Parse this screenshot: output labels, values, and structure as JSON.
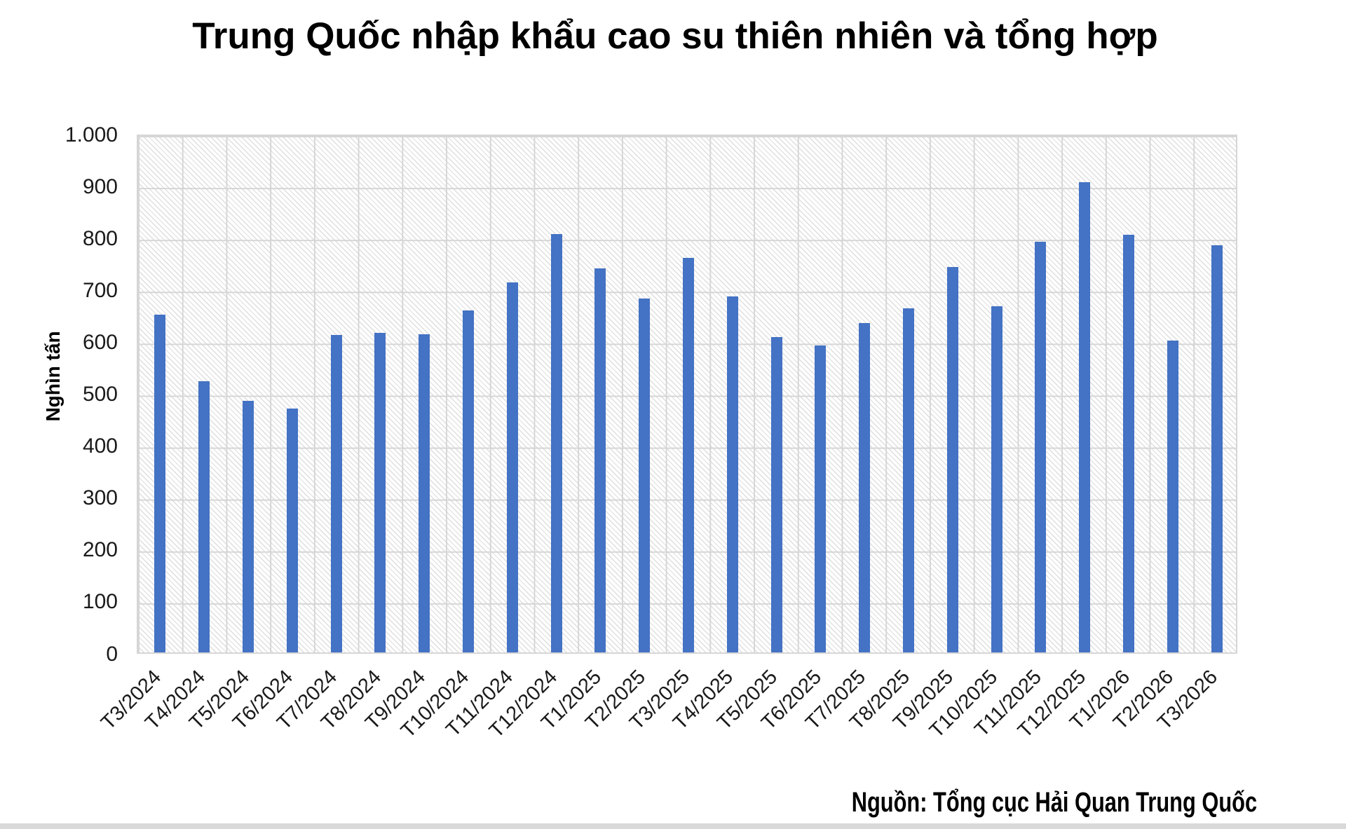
{
  "chart_data": {
    "type": "bar",
    "title": "Trung Quốc nhập khẩu cao su thiên nhiên và tổng hợp",
    "ylabel": "Nghìn tấn",
    "xlabel": "",
    "ylim": [
      0,
      1000
    ],
    "grid": true,
    "bar_color": "#4472c4",
    "y_ticks_top_to_bottom": [
      "1.000",
      "900",
      "800",
      "700",
      "600",
      "500",
      "400",
      "300",
      "200",
      "100",
      "0"
    ],
    "categories": [
      "T3/2024",
      "T4/2024",
      "T5/2024",
      "T6/2024",
      "T7/2024",
      "T8/2024",
      "T9/2024",
      "T10/2024",
      "T11/2024",
      "T12/2024",
      "T1/2025",
      "T2/2025",
      "T3/2025",
      "T4/2025",
      "T5/2025",
      "T6/2025",
      "T7/2025",
      "T8/2025",
      "T9/2025",
      "T10/2025",
      "T11/2025",
      "T12/2025",
      "T1/2026",
      "T2/2026",
      "T3/2026"
    ],
    "values": [
      650,
      523,
      485,
      470,
      612,
      616,
      613,
      658,
      712,
      806,
      740,
      681,
      760,
      685,
      608,
      591,
      634,
      663,
      742,
      667,
      791,
      906,
      805,
      601,
      784
    ]
  },
  "source_note": "Nguồn: Tổng cục Hải Quan Trung Quốc"
}
